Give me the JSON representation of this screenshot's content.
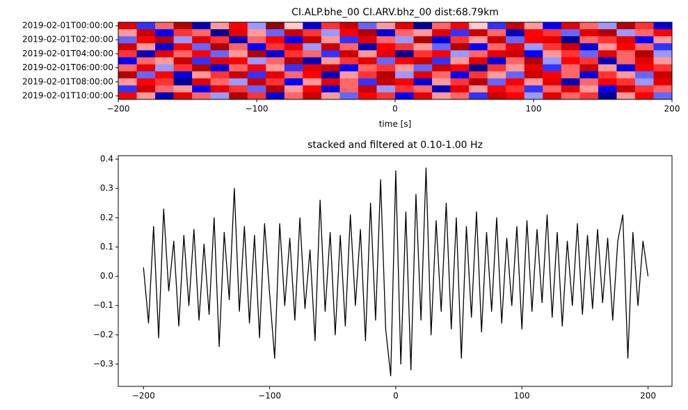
{
  "chart_data": [
    {
      "type": "heatmap",
      "title": "CI.ALP.bhe_00 CI.ARV.bhz_00  dist:68.79km",
      "xlabel": "time [s]",
      "rows": [
        "2019-02-01T00:00:00",
        null,
        "2019-02-01T02:00:00",
        null,
        "2019-02-01T04:00:00",
        null,
        "2019-02-01T06:00:00",
        null,
        "2019-02-01T08:00:00",
        null,
        "2019-02-01T10:00:00"
      ],
      "xlim": [
        -200,
        200
      ],
      "xticks": [
        {
          "value": -200,
          "label": "−200"
        },
        {
          "value": -100,
          "label": "−100"
        },
        0,
        100,
        200
      ],
      "cmap": "seismic",
      "clim": [
        -1,
        1
      ],
      "values": [
        [
          0.6,
          -0.4,
          0.3,
          0.8,
          -0.7,
          0.2,
          0.5,
          -0.2,
          0.9,
          0.1,
          -0.6,
          0.4,
          0.7,
          -0.3,
          0.2,
          0.6,
          -0.8,
          0.3,
          0.5,
          0.1,
          -0.4,
          0.7,
          0.2,
          -0.5,
          0.6,
          0.3,
          -0.2,
          0.8,
          0.4,
          -0.6
        ],
        [
          0.2,
          0.7,
          -0.5,
          0.4,
          0.3,
          -0.8,
          0.6,
          0.2,
          -0.3,
          0.7,
          0.4,
          -0.2,
          0.5,
          0.8,
          -0.6,
          0.3,
          0.2,
          0.6,
          -0.4,
          0.7,
          0.3,
          -0.7,
          0.5,
          0.4,
          -0.3,
          0.6,
          0.8,
          -0.2,
          0.3,
          0.5
        ],
        [
          -0.3,
          0.5,
          0.8,
          -0.2,
          0.6,
          0.4,
          -0.7,
          0.3,
          0.5,
          -0.5,
          0.7,
          0.2,
          -0.4,
          0.6,
          0.3,
          -0.2,
          0.8,
          -0.6,
          0.4,
          0.2,
          0.7,
          -0.3,
          0.5,
          0.6,
          -0.8,
          0.3,
          0.4,
          0.6,
          -0.5,
          0.2
        ],
        [
          0.7,
          0.2,
          -0.6,
          0.5,
          -0.3,
          0.8,
          0.3,
          -0.5,
          0.4,
          0.6,
          -0.2,
          0.7,
          0.3,
          -0.7,
          0.5,
          0.4,
          0.2,
          -0.3,
          0.8,
          -0.5,
          0.3,
          0.6,
          -0.2,
          0.4,
          0.7,
          -0.6,
          0.2,
          0.5,
          0.3,
          -0.4
        ],
        [
          0.4,
          -0.7,
          0.6,
          0.3,
          0.5,
          -0.3,
          0.2,
          0.8,
          -0.6,
          0.4,
          0.3,
          -0.4,
          0.7,
          0.2,
          0.6,
          -0.8,
          0.4,
          0.5,
          -0.2,
          0.3,
          0.6,
          0.7,
          -0.5,
          0.2,
          0.4,
          -0.3,
          0.6,
          0.3,
          0.8,
          -0.2
        ],
        [
          -0.5,
          0.3,
          0.2,
          0.7,
          -0.4,
          0.6,
          0.5,
          -0.2,
          0.3,
          0.8,
          -0.7,
          0.2,
          0.4,
          0.6,
          -0.3,
          0.5,
          0.7,
          -0.4,
          0.2,
          0.6,
          -0.6,
          0.3,
          0.8,
          -0.2,
          0.5,
          0.4,
          -0.7,
          0.3,
          0.6,
          0.2
        ],
        [
          0.3,
          0.6,
          -0.2,
          0.4,
          0.8,
          -0.6,
          0.3,
          0.5,
          0.2,
          -0.4,
          0.6,
          0.7,
          -0.5,
          0.3,
          0.4,
          0.2,
          -0.3,
          0.7,
          0.5,
          -0.8,
          0.4,
          0.2,
          0.6,
          -0.4,
          0.3,
          0.7,
          0.2,
          -0.6,
          0.5,
          0.4
        ],
        [
          0.8,
          -0.3,
          0.5,
          -0.6,
          0.2,
          0.4,
          0.7,
          -0.4,
          0.6,
          0.3,
          0.5,
          -0.7,
          0.2,
          0.4,
          0.8,
          -0.2,
          0.6,
          0.3,
          -0.5,
          0.4,
          0.2,
          -0.3,
          0.7,
          0.5,
          0.3,
          -0.6,
          0.4,
          0.2,
          -0.3,
          0.7
        ],
        [
          0.2,
          0.5,
          0.4,
          -0.8,
          0.6,
          0.3,
          -0.2,
          0.7,
          0.4,
          -0.5,
          0.2,
          0.6,
          0.3,
          -0.4,
          0.7,
          0.5,
          -0.6,
          0.2,
          0.4,
          0.8,
          -0.3,
          0.5,
          0.2,
          0.6,
          -0.7,
          0.3,
          0.5,
          0.4,
          -0.2,
          0.6
        ],
        [
          -0.4,
          0.7,
          0.3,
          0.2,
          -0.5,
          0.6,
          0.4,
          -0.3,
          0.8,
          0.2,
          0.5,
          -0.6,
          0.3,
          0.7,
          -0.2,
          0.4,
          0.3,
          -0.7,
          0.6,
          0.2,
          0.5,
          0.4,
          -0.4,
          0.3,
          0.6,
          0.2,
          -0.5,
          0.7,
          0.4,
          0.3
        ],
        [
          0.5,
          0.2,
          -0.7,
          0.6,
          0.3,
          -0.2,
          0.8,
          0.4,
          -0.6,
          0.3,
          0.7,
          0.2,
          -0.3,
          0.5,
          0.4,
          -0.5,
          0.6,
          0.2,
          0.3,
          -0.4,
          0.7,
          0.5,
          -0.2,
          0.6,
          0.3,
          0.4,
          -0.8,
          0.2,
          0.5,
          -0.3
        ]
      ]
    },
    {
      "type": "line",
      "title": "stacked and filtered at 0.10-1.00 Hz",
      "color": "#000000",
      "xlim": [
        -220,
        219
      ],
      "ylim": [
        -0.376,
        0.412
      ],
      "xticks": [
        {
          "value": -200,
          "label": "−200"
        },
        {
          "value": -100,
          "label": "−100"
        },
        0,
        100,
        200
      ],
      "yticks": [
        {
          "value": -0.3,
          "label": "−0.3"
        },
        {
          "value": -0.2,
          "label": "−0.2"
        },
        {
          "value": -0.1,
          "label": "−0.1"
        },
        {
          "value": 0,
          "label": "0.0"
        },
        0.1,
        0.2,
        0.3,
        0.4
      ],
      "x": [
        -200,
        -196,
        -192,
        -188,
        -184,
        -180,
        -176,
        -172,
        -168,
        -164,
        -160,
        -156,
        -152,
        -148,
        -144,
        -140,
        -136,
        -132,
        -128,
        -124,
        -120,
        -116,
        -112,
        -108,
        -104,
        -100,
        -96,
        -92,
        -88,
        -84,
        -80,
        -76,
        -72,
        -68,
        -64,
        -60,
        -56,
        -52,
        -48,
        -44,
        -40,
        -36,
        -32,
        -28,
        -24,
        -20,
        -16,
        -12,
        -8,
        -4,
        0,
        4,
        8,
        12,
        16,
        20,
        24,
        28,
        32,
        36,
        40,
        44,
        48,
        52,
        56,
        60,
        64,
        68,
        72,
        76,
        80,
        84,
        88,
        92,
        96,
        100,
        104,
        108,
        112,
        116,
        120,
        124,
        128,
        132,
        136,
        140,
        144,
        148,
        152,
        156,
        160,
        164,
        168,
        172,
        176,
        180,
        184,
        188,
        192,
        196,
        200
      ],
      "values": [
        0.03,
        -0.16,
        0.17,
        -0.21,
        0.23,
        -0.05,
        0.12,
        -0.17,
        0.14,
        -0.1,
        0.16,
        -0.15,
        0.11,
        -0.13,
        0.2,
        -0.24,
        0.15,
        -0.08,
        0.3,
        -0.12,
        0.17,
        -0.16,
        0.14,
        -0.21,
        0.18,
        -0.06,
        -0.28,
        0.18,
        -0.1,
        0.13,
        -0.15,
        0.2,
        -0.11,
        0.09,
        -0.22,
        0.26,
        -0.12,
        0.15,
        -0.2,
        0.14,
        -0.17,
        0.21,
        -0.1,
        0.16,
        -0.22,
        0.25,
        -0.15,
        0.33,
        -0.18,
        -0.34,
        0.36,
        -0.3,
        0.22,
        -0.32,
        0.28,
        -0.15,
        0.37,
        -0.2,
        0.19,
        -0.12,
        0.25,
        -0.18,
        0.2,
        -0.28,
        0.17,
        -0.14,
        0.22,
        -0.19,
        0.15,
        -0.12,
        0.2,
        -0.16,
        0.13,
        -0.1,
        0.17,
        -0.18,
        0.19,
        -0.12,
        0.16,
        -0.09,
        0.21,
        -0.14,
        0.15,
        -0.17,
        0.12,
        -0.1,
        0.18,
        -0.13,
        0.14,
        -0.11,
        0.16,
        -0.09,
        0.13,
        -0.15,
        0.12,
        0.21,
        -0.28,
        0.15,
        -0.1,
        0.12,
        0.0
      ]
    }
  ]
}
